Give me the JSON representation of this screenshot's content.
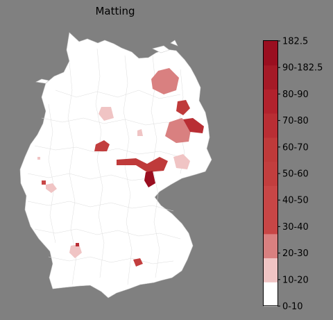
{
  "title": "Matting",
  "colorbar": {
    "tick_labels": [
      "0-10",
      "10-20",
      "20-30",
      "30-40",
      "40-50",
      "50-60",
      "60-70",
      "70-80",
      "80-90",
      "90-182.5",
      "182.5"
    ],
    "colors": [
      "#ffffff",
      "#f0c4c4",
      "#d98080",
      "#c84646",
      "#c84646",
      "#c23e3e",
      "#bf3a3a",
      "#b92e34",
      "#b2222d",
      "#a51a27",
      "#9a0f20"
    ]
  },
  "map": {
    "region": "Germany",
    "background_fill": "#ffffff",
    "border_color": "#c8c8c8",
    "regions_highlighted": [
      {
        "name": "northeast-large",
        "band": "20-30"
      },
      {
        "name": "northeast-small",
        "band": "60-70"
      },
      {
        "name": "east-cluster",
        "band": "20-30"
      },
      {
        "name": "east-dark",
        "band": "70-80"
      },
      {
        "name": "central-west",
        "band": "50-60"
      },
      {
        "name": "central-belt",
        "band": "60-70"
      },
      {
        "name": "central-dark",
        "band": "90-182.5"
      },
      {
        "name": "north-small",
        "band": "10-20"
      },
      {
        "name": "east-light",
        "band": "10-20"
      },
      {
        "name": "southwest-light",
        "band": "10-20"
      },
      {
        "name": "south-small",
        "band": "50-60"
      }
    ]
  }
}
